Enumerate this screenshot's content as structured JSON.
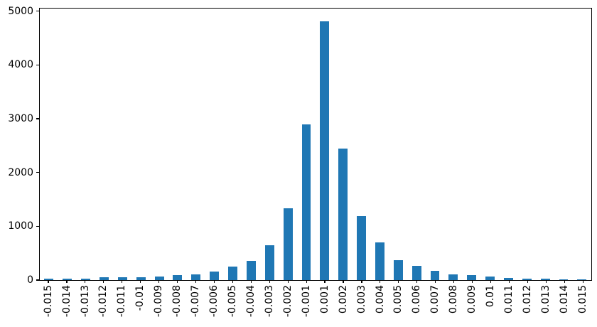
{
  "chart_data": {
    "type": "bar",
    "title": "",
    "xlabel": "",
    "ylabel": "",
    "categories": [
      "-0.015",
      "-0.014",
      "-0.013",
      "-0.012",
      "-0.011",
      "-0.01",
      "-0.009",
      "-0.008",
      "-0.007",
      "-0.006",
      "-0.005",
      "-0.004",
      "-0.003",
      "-0.002",
      "-0.001",
      "0.001",
      "0.002",
      "0.003",
      "0.004",
      "0.005",
      "0.006",
      "0.007",
      "0.008",
      "0.009",
      "0.01",
      "0.011",
      "0.012",
      "0.013",
      "0.014",
      "0.015"
    ],
    "values": [
      25,
      30,
      30,
      50,
      55,
      55,
      70,
      90,
      100,
      155,
      245,
      360,
      650,
      1340,
      2890,
      4815,
      2450,
      1185,
      695,
      375,
      265,
      170,
      110,
      90,
      60,
      45,
      25,
      25,
      20,
      15
    ],
    "ytick_labels": [
      "0",
      "1000",
      "2000",
      "3000",
      "4000",
      "5000"
    ],
    "ytick_values": [
      0,
      1000,
      2000,
      3000,
      4000,
      5000
    ],
    "ylim": [
      0,
      5050
    ],
    "x_tick_rotation": 90,
    "bar_width_fraction": 0.5,
    "grid": false,
    "legend": null,
    "colors": {
      "bar": "#1f77b4",
      "axis": "#000000",
      "background": "#ffffff",
      "text": "#000000"
    }
  }
}
